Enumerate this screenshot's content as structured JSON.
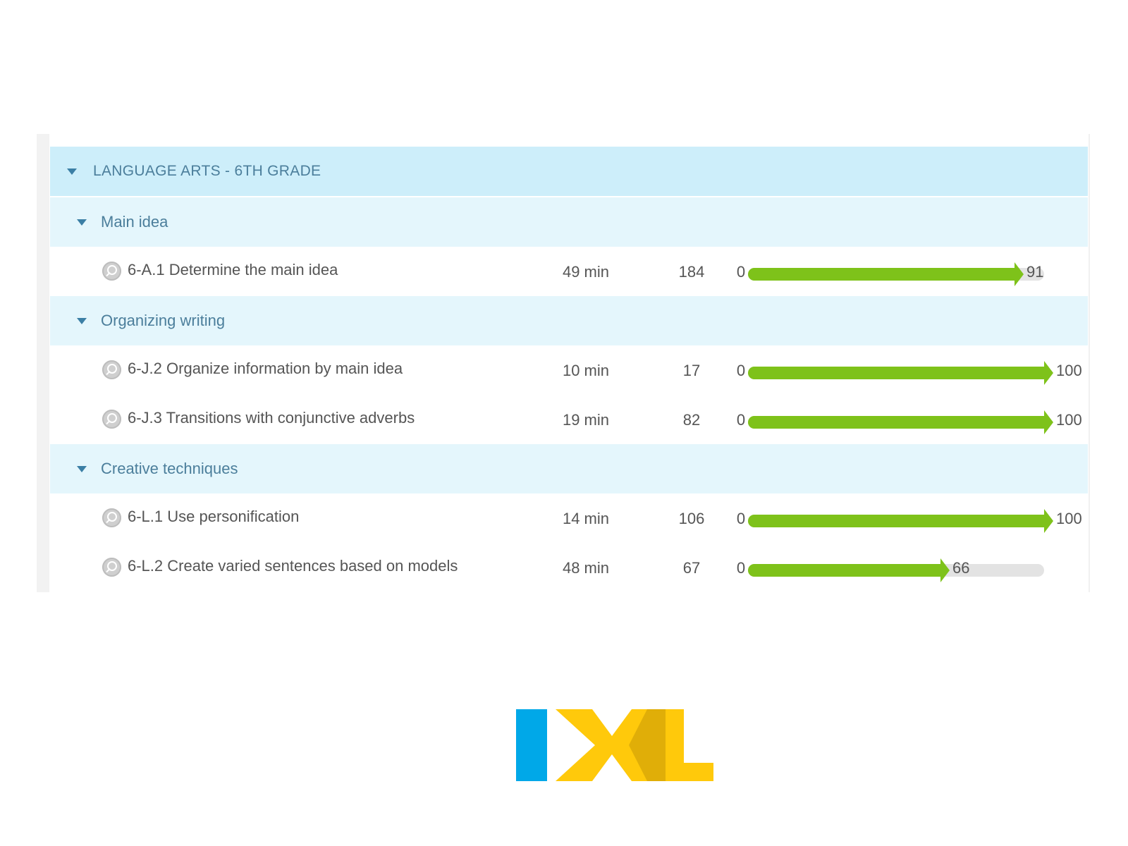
{
  "group": {
    "title": "LANGUAGE ARTS - 6TH GRADE"
  },
  "sections": [
    {
      "title": "Main idea",
      "skills": [
        {
          "name": "6-A.1 Determine the main idea",
          "time": "49 min",
          "questions": "184",
          "start": "0",
          "score": "91",
          "progress": 0.91
        }
      ]
    },
    {
      "title": "Organizing writing",
      "skills": [
        {
          "name": "6-J.2 Organize information by main idea",
          "time": "10 min",
          "questions": "17",
          "start": "0",
          "score": "100",
          "progress": 1.0
        },
        {
          "name": "6-J.3 Transitions with conjunctive adverbs",
          "time": "19 min",
          "questions": "82",
          "start": "0",
          "score": "100",
          "progress": 1.0
        }
      ]
    },
    {
      "title": "Creative techniques",
      "skills": [
        {
          "name": "6-L.1 Use personification",
          "time": "14 min",
          "questions": "106",
          "start": "0",
          "score": "100",
          "progress": 1.0
        },
        {
          "name": "6-L.2 Create varied sentences based on models",
          "time": "48 min",
          "questions": "67",
          "start": "0",
          "score": "66",
          "progress": 0.66
        }
      ]
    }
  ],
  "logo": {
    "text": "IXL",
    "colors": {
      "i": "#00a8e8",
      "x": "#ffc90b",
      "l": "#ffc90b",
      "overlap": "#e0ae08"
    }
  },
  "colors": {
    "progress_fill": "#7ec21a",
    "progress_track": "#e3e3e3",
    "group_header": "#cdeefa",
    "section_header": "#e4f6fc"
  }
}
